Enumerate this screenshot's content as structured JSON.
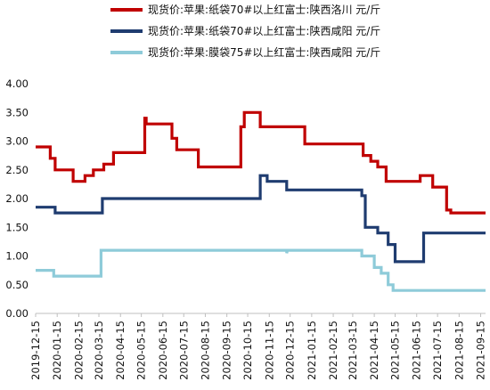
{
  "chart_data": {
    "type": "line",
    "title": "",
    "xlabel": "",
    "ylabel": "",
    "ylim": [
      0,
      4
    ],
    "yticks": [
      "0.00",
      "0.50",
      "1.00",
      "1.50",
      "2.00",
      "2.50",
      "3.00",
      "3.50",
      "4.00"
    ],
    "xlim": [
      "2019-12-15",
      "2021-09-22"
    ],
    "xticks": [
      "2019-12-15",
      "2020-01-15",
      "2020-02-15",
      "2020-03-15",
      "2020-04-15",
      "2020-05-15",
      "2020-06-15",
      "2020-07-15",
      "2020-08-15",
      "2020-09-15",
      "2020-10-15",
      "2020-11-15",
      "2020-12-15",
      "2021-01-15",
      "2021-02-15",
      "2021-03-15",
      "2021-04-15",
      "2021-05-15",
      "2021-06-15",
      "2021-07-15",
      "2021-08-15",
      "2021-09-15"
    ],
    "grid": false,
    "legend_position": "top-center",
    "series": [
      {
        "name": "现货价:苹果:纸袋70#以上红富士:陕西洛川 元/斤",
        "color": "#c00000",
        "points": [
          [
            "2019-12-15",
            2.9
          ],
          [
            "2020-01-05",
            2.9
          ],
          [
            "2020-01-05",
            2.7
          ],
          [
            "2020-01-12",
            2.7
          ],
          [
            "2020-01-12",
            2.5
          ],
          [
            "2020-02-07",
            2.5
          ],
          [
            "2020-02-07",
            2.3
          ],
          [
            "2020-02-24",
            2.3
          ],
          [
            "2020-02-24",
            2.4
          ],
          [
            "2020-03-07",
            2.4
          ],
          [
            "2020-03-07",
            2.5
          ],
          [
            "2020-03-22",
            2.5
          ],
          [
            "2020-03-22",
            2.6
          ],
          [
            "2020-04-05",
            2.6
          ],
          [
            "2020-04-05",
            2.8
          ],
          [
            "2020-05-20",
            2.8
          ],
          [
            "2020-05-20",
            3.4
          ],
          [
            "2020-05-22",
            3.4
          ],
          [
            "2020-05-22",
            3.3
          ],
          [
            "2020-06-28",
            3.3
          ],
          [
            "2020-06-28",
            3.05
          ],
          [
            "2020-07-05",
            3.05
          ],
          [
            "2020-07-05",
            2.85
          ],
          [
            "2020-08-05",
            2.85
          ],
          [
            "2020-08-05",
            2.55
          ],
          [
            "2020-10-05",
            2.55
          ],
          [
            "2020-10-05",
            3.25
          ],
          [
            "2020-10-10",
            3.25
          ],
          [
            "2020-10-10",
            3.5
          ],
          [
            "2020-11-02",
            3.5
          ],
          [
            "2020-11-02",
            3.25
          ],
          [
            "2021-01-05",
            3.25
          ],
          [
            "2021-01-05",
            2.95
          ],
          [
            "2021-03-30",
            2.95
          ],
          [
            "2021-03-30",
            2.75
          ],
          [
            "2021-04-10",
            2.75
          ],
          [
            "2021-04-10",
            2.65
          ],
          [
            "2021-04-20",
            2.65
          ],
          [
            "2021-04-20",
            2.55
          ],
          [
            "2021-05-02",
            2.55
          ],
          [
            "2021-05-02",
            2.3
          ],
          [
            "2021-06-20",
            2.3
          ],
          [
            "2021-06-20",
            2.4
          ],
          [
            "2021-07-08",
            2.4
          ],
          [
            "2021-07-08",
            2.2
          ],
          [
            "2021-07-28",
            2.2
          ],
          [
            "2021-07-28",
            1.8
          ],
          [
            "2021-08-03",
            1.8
          ],
          [
            "2021-08-03",
            1.75
          ],
          [
            "2021-09-22",
            1.75
          ]
        ]
      },
      {
        "name": "现货价:苹果:纸袋70#以上红富士:陕西咸阳 元/斤",
        "color": "#1f3c70",
        "points": [
          [
            "2019-12-15",
            1.85
          ],
          [
            "2020-01-12",
            1.85
          ],
          [
            "2020-01-12",
            1.75
          ],
          [
            "2020-03-20",
            1.75
          ],
          [
            "2020-03-20",
            2.0
          ],
          [
            "2020-11-02",
            2.0
          ],
          [
            "2020-11-02",
            2.4
          ],
          [
            "2020-11-12",
            2.4
          ],
          [
            "2020-11-12",
            2.3
          ],
          [
            "2020-12-10",
            2.3
          ],
          [
            "2020-12-10",
            2.15
          ],
          [
            "2021-03-28",
            2.15
          ],
          [
            "2021-03-28",
            2.05
          ],
          [
            "2021-04-02",
            2.05
          ],
          [
            "2021-04-02",
            1.5
          ],
          [
            "2021-04-20",
            1.5
          ],
          [
            "2021-04-20",
            1.4
          ],
          [
            "2021-05-05",
            1.4
          ],
          [
            "2021-05-05",
            1.2
          ],
          [
            "2021-05-15",
            1.2
          ],
          [
            "2021-05-15",
            0.9
          ],
          [
            "2021-06-25",
            0.9
          ],
          [
            "2021-06-25",
            1.4
          ],
          [
            "2021-09-22",
            1.4
          ]
        ]
      },
      {
        "name": "现货价:苹果:膜袋75#以上红富士:陕西咸阳 元/斤",
        "color": "#8ecbd9",
        "points": [
          [
            "2019-12-15",
            0.75
          ],
          [
            "2020-01-10",
            0.75
          ],
          [
            "2020-01-10",
            0.65
          ],
          [
            "2020-03-18",
            0.65
          ],
          [
            "2020-03-18",
            1.1
          ],
          [
            "2020-12-10",
            1.1
          ],
          [
            "2020-12-10",
            1.05
          ],
          [
            "2020-12-11",
            1.1
          ],
          [
            "2021-03-28",
            1.1
          ],
          [
            "2021-03-28",
            1.0
          ],
          [
            "2021-04-15",
            1.0
          ],
          [
            "2021-04-15",
            0.8
          ],
          [
            "2021-04-25",
            0.8
          ],
          [
            "2021-04-25",
            0.7
          ],
          [
            "2021-05-05",
            0.7
          ],
          [
            "2021-05-05",
            0.5
          ],
          [
            "2021-05-12",
            0.5
          ],
          [
            "2021-05-12",
            0.4
          ],
          [
            "2021-09-22",
            0.4
          ]
        ]
      }
    ]
  }
}
